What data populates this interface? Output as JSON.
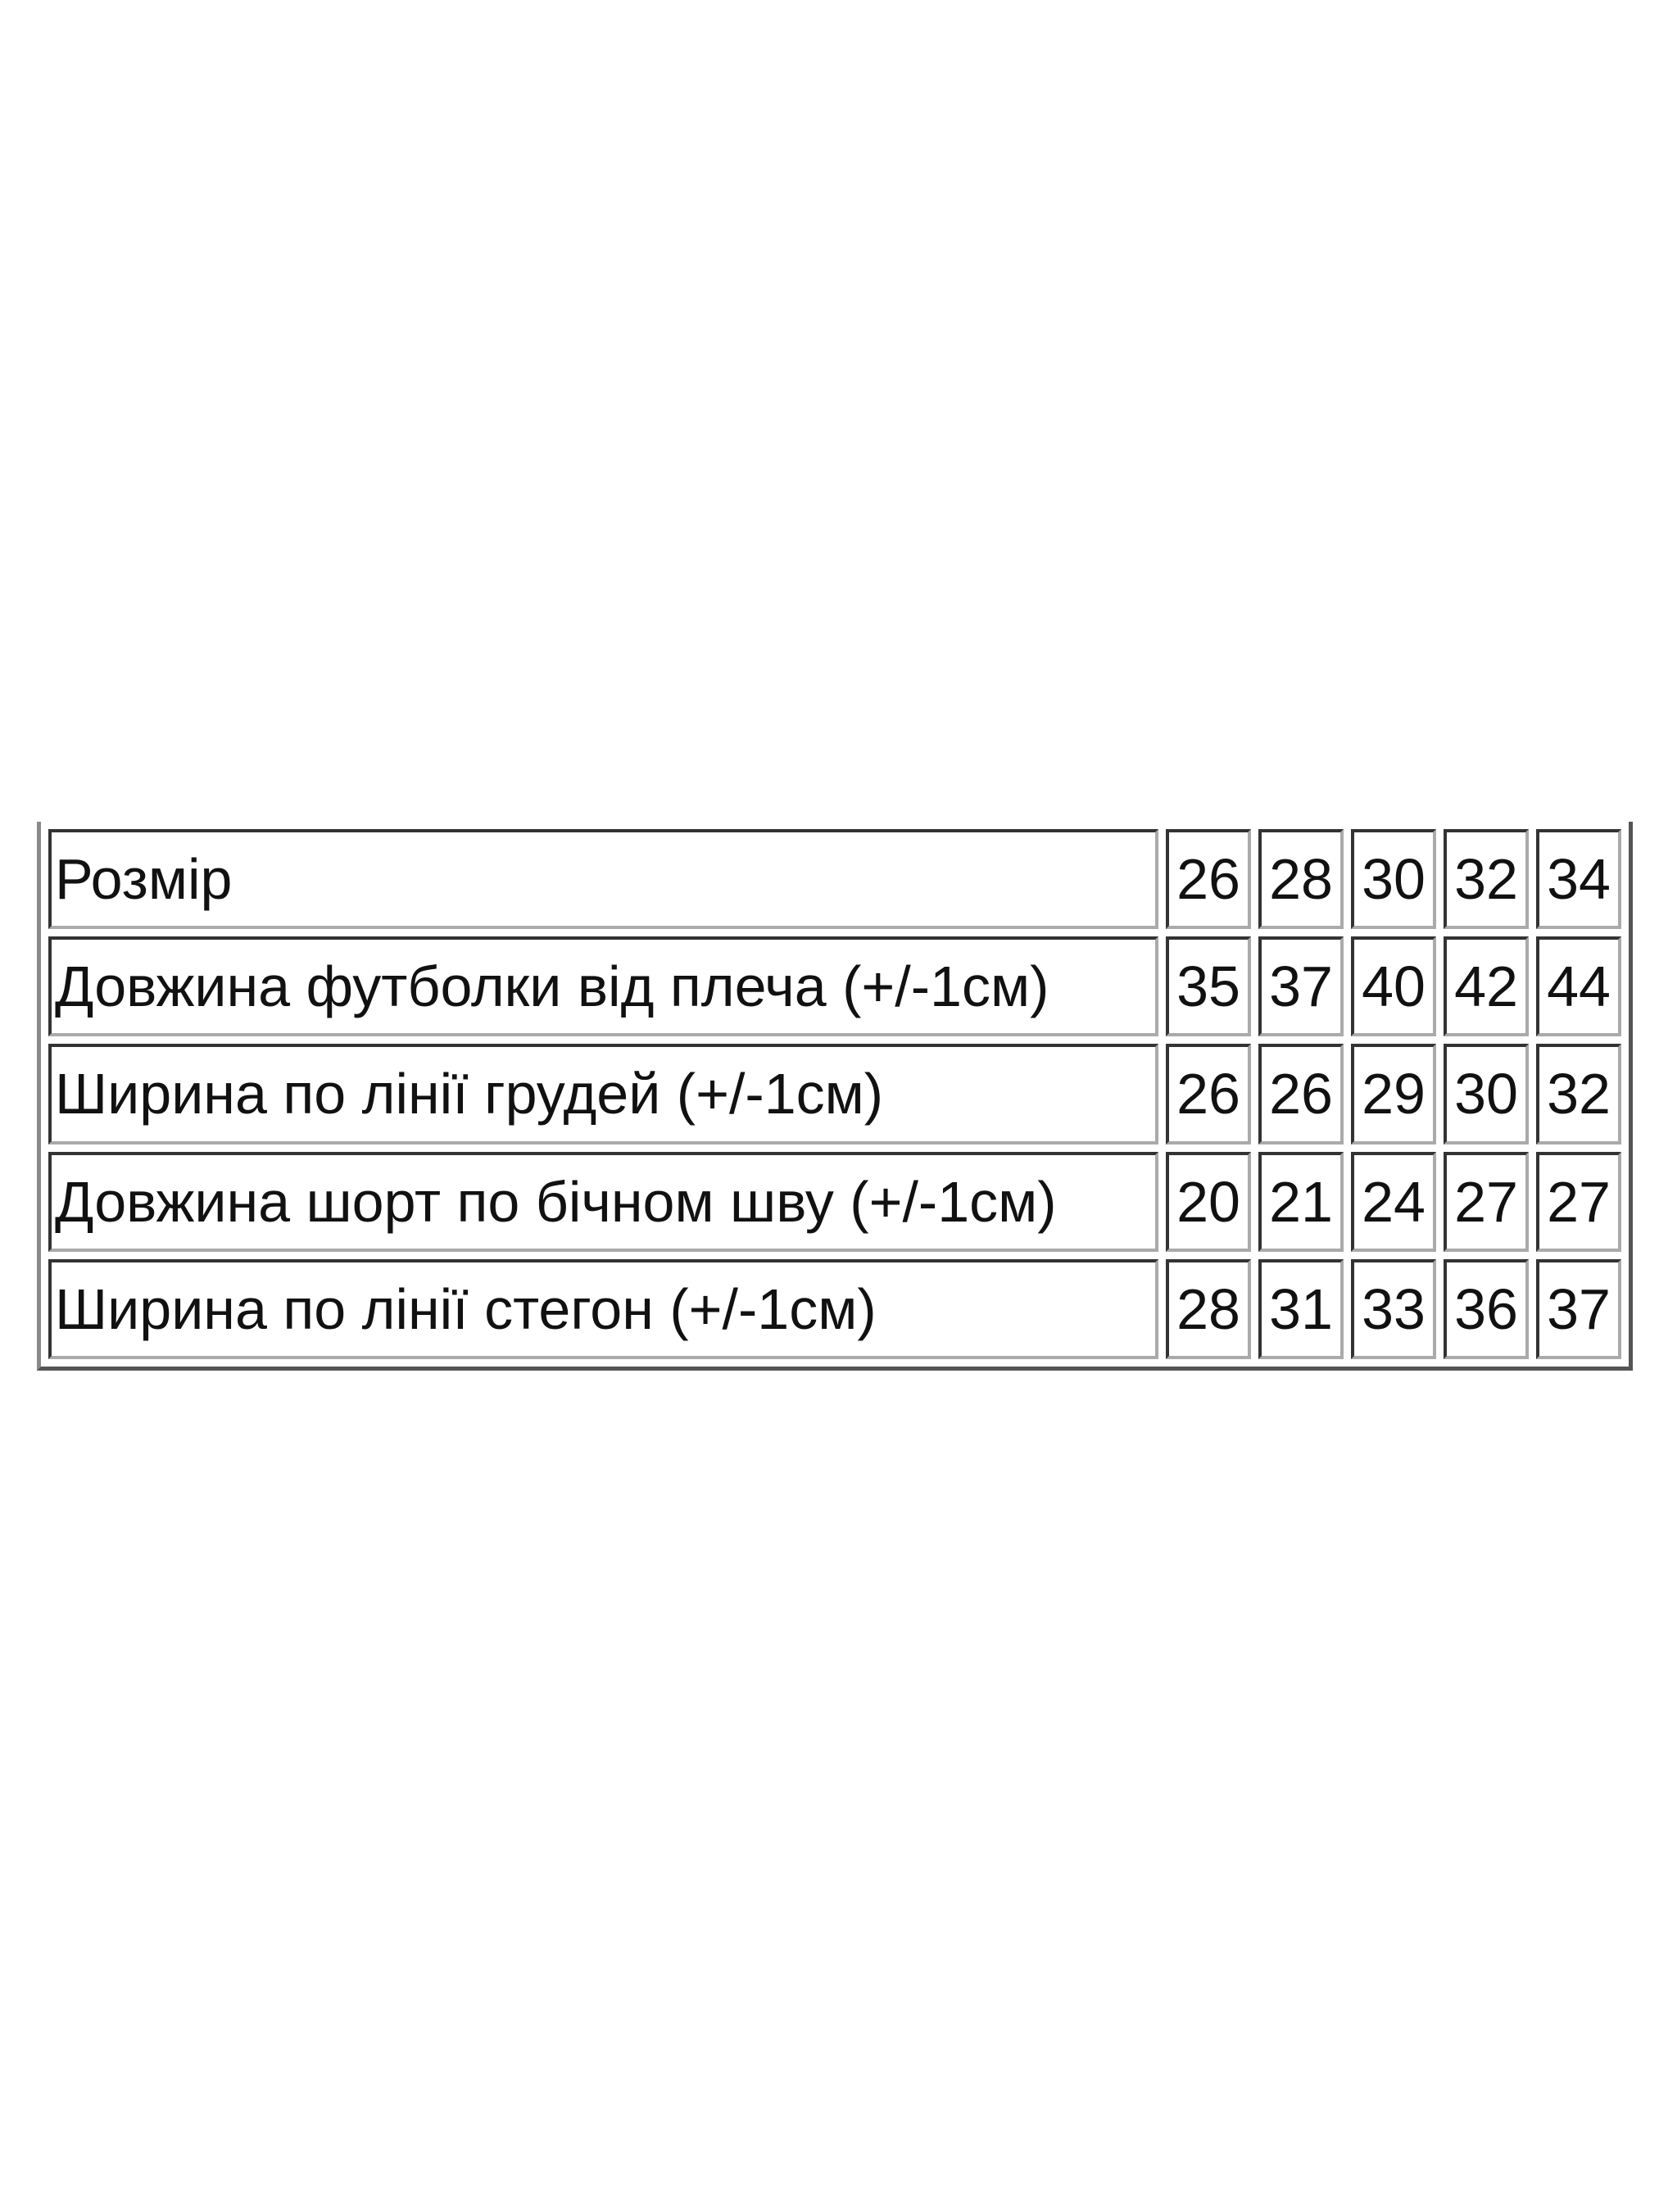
{
  "table": {
    "rows": [
      {
        "label": "Розмір",
        "values": [
          "26",
          "28",
          "30",
          "32",
          "34"
        ]
      },
      {
        "label": "Довжина футболки від плеча (+/-1см)",
        "values": [
          "35",
          "37",
          "40",
          "42",
          "44"
        ]
      },
      {
        "label": "Ширина по лінії грудей (+/-1см)",
        "values": [
          "26",
          "26",
          "29",
          "30",
          "32"
        ]
      },
      {
        "label": "Довжина шорт по бічном шву (+/-1см)",
        "values": [
          "20",
          "21",
          "24",
          "27",
          "27"
        ]
      },
      {
        "label": "Ширина по лінії стегон (+/-1см)",
        "values": [
          "28",
          "31",
          "33",
          "36",
          "37"
        ]
      }
    ]
  }
}
